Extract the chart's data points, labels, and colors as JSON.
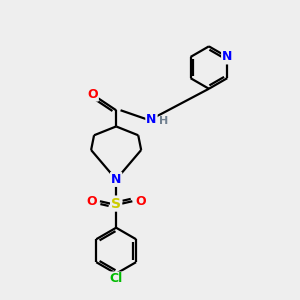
{
  "bg_color": "#eeeeee",
  "bond_color": "#000000",
  "atom_colors": {
    "N": "#0000ff",
    "O": "#ff0000",
    "S": "#cccc00",
    "Cl": "#00bb00",
    "H": "#708090",
    "C": "#000000"
  },
  "font_size": 9,
  "lw": 1.6,
  "fig_size": [
    3.0,
    3.0
  ],
  "dpi": 100
}
